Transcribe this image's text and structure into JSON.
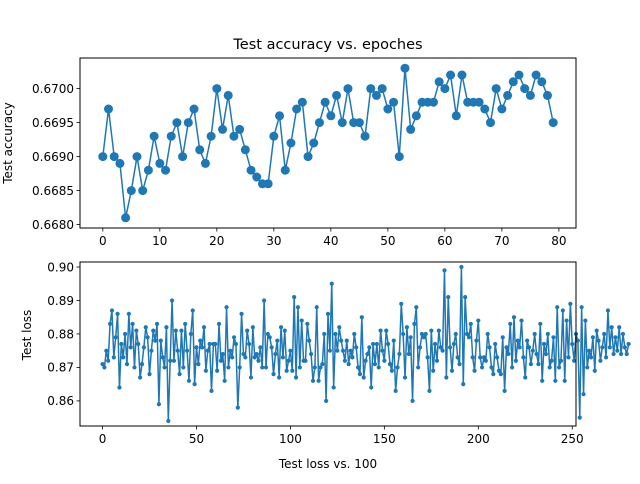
{
  "chart_data": [
    {
      "type": "line",
      "title": "Test accuracy vs. epoches",
      "xlabel": "",
      "ylabel": "Test accuracy",
      "xlim": [
        -4,
        83
      ],
      "ylim": [
        0.66795,
        0.67045
      ],
      "xticks": [
        0,
        10,
        20,
        30,
        40,
        50,
        60,
        70,
        80
      ],
      "yticks": [
        0.668,
        0.6685,
        0.669,
        0.6695,
        0.67
      ],
      "ytick_labels": [
        "0.6680",
        "0.6685",
        "0.6690",
        "0.6695",
        "0.6700"
      ],
      "marker": "circle-large",
      "color": "#1f77b4",
      "x": [
        0,
        1,
        2,
        3,
        4,
        5,
        6,
        7,
        8,
        9,
        10,
        11,
        12,
        13,
        14,
        15,
        16,
        17,
        18,
        19,
        20,
        21,
        22,
        23,
        24,
        25,
        26,
        27,
        28,
        29,
        30,
        31,
        32,
        33,
        34,
        35,
        36,
        37,
        38,
        39,
        40,
        41,
        42,
        43,
        44,
        45,
        46,
        47,
        48,
        49,
        50,
        51,
        52,
        53,
        54,
        55,
        56,
        57,
        58,
        59,
        60,
        61,
        62,
        63,
        64,
        65,
        66,
        67,
        68,
        69,
        70,
        71,
        72,
        73,
        74,
        75,
        76,
        77,
        78,
        79
      ],
      "y": [
        0.669,
        0.6697,
        0.669,
        0.6689,
        0.6681,
        0.6685,
        0.669,
        0.6685,
        0.6688,
        0.6693,
        0.6689,
        0.6688,
        0.6693,
        0.6695,
        0.669,
        0.6695,
        0.6697,
        0.6691,
        0.6689,
        0.6693,
        0.67,
        0.6694,
        0.6699,
        0.6693,
        0.6694,
        0.6691,
        0.6688,
        0.6687,
        0.6686,
        0.6686,
        0.6693,
        0.6696,
        0.6688,
        0.6692,
        0.6697,
        0.6698,
        0.669,
        0.6692,
        0.6695,
        0.6698,
        0.6696,
        0.6699,
        0.6695,
        0.67,
        0.6695,
        0.6695,
        0.6693,
        0.67,
        0.6699,
        0.67,
        0.6697,
        0.6698,
        0.669,
        0.6703,
        0.6694,
        0.6696,
        0.6698,
        0.6698,
        0.6698,
        0.6701,
        0.67,
        0.6702,
        0.6696,
        0.6702,
        0.6698,
        0.6698,
        0.6698,
        0.6697,
        0.6695,
        0.67,
        0.6697,
        0.6699,
        0.6701,
        0.6702,
        0.67,
        0.6699,
        0.6702,
        0.6701,
        0.6699,
        0.6695
      ]
    },
    {
      "type": "line",
      "title": "",
      "xlabel": "Test loss vs. 100",
      "ylabel": "Test loss",
      "xlim": [
        -12,
        252
      ],
      "ylim": [
        0.8525,
        0.9015
      ],
      "xticks": [
        0,
        50,
        100,
        150,
        200,
        250
      ],
      "yticks": [
        0.86,
        0.87,
        0.88,
        0.89,
        0.9
      ],
      "ytick_labels": [
        "0.86",
        "0.87",
        "0.88",
        "0.89",
        "0.90"
      ],
      "marker": "circle-small",
      "color": "#1f77b4",
      "y": [
        0.871,
        0.87,
        0.875,
        0.872,
        0.883,
        0.887,
        0.873,
        0.879,
        0.886,
        0.864,
        0.877,
        0.873,
        0.88,
        0.871,
        0.886,
        0.876,
        0.883,
        0.87,
        0.881,
        0.877,
        0.867,
        0.871,
        0.876,
        0.882,
        0.879,
        0.868,
        0.875,
        0.881,
        0.878,
        0.883,
        0.859,
        0.878,
        0.873,
        0.87,
        0.882,
        0.854,
        0.872,
        0.89,
        0.872,
        0.881,
        0.875,
        0.868,
        0.881,
        0.87,
        0.883,
        0.875,
        0.866,
        0.88,
        0.887,
        0.865,
        0.876,
        0.871,
        0.878,
        0.876,
        0.882,
        0.869,
        0.875,
        0.877,
        0.863,
        0.877,
        0.877,
        0.869,
        0.883,
        0.872,
        0.874,
        0.866,
        0.888,
        0.87,
        0.875,
        0.873,
        0.879,
        0.877,
        0.858,
        0.87,
        0.886,
        0.874,
        0.873,
        0.881,
        0.877,
        0.867,
        0.882,
        0.873,
        0.874,
        0.872,
        0.876,
        0.87,
        0.89,
        0.87,
        0.88,
        0.879,
        0.876,
        0.868,
        0.874,
        0.878,
        0.867,
        0.882,
        0.873,
        0.881,
        0.869,
        0.872,
        0.875,
        0.869,
        0.891,
        0.867,
        0.888,
        0.87,
        0.884,
        0.872,
        0.872,
        0.883,
        0.878,
        0.874,
        0.866,
        0.87,
        0.888,
        0.866,
        0.87,
        0.871,
        0.88,
        0.86,
        0.886,
        0.875,
        0.895,
        0.864,
        0.88,
        0.875,
        0.882,
        0.878,
        0.875,
        0.872,
        0.878,
        0.871,
        0.875,
        0.873,
        0.88,
        0.876,
        0.87,
        0.868,
        0.885,
        0.867,
        0.872,
        0.874,
        0.876,
        0.864,
        0.877,
        0.871,
        0.877,
        0.87,
        0.881,
        0.875,
        0.872,
        0.881,
        0.877,
        0.871,
        0.869,
        0.878,
        0.863,
        0.87,
        0.874,
        0.889,
        0.88,
        0.867,
        0.882,
        0.874,
        0.879,
        0.86,
        0.883,
        0.888,
        0.87,
        0.876,
        0.88,
        0.879,
        0.88,
        0.873,
        0.863,
        0.881,
        0.869,
        0.877,
        0.872,
        0.881,
        0.876,
        0.875,
        0.899,
        0.867,
        0.891,
        0.876,
        0.869,
        0.877,
        0.88,
        0.873,
        0.871,
        0.9,
        0.865,
        0.891,
        0.88,
        0.879,
        0.883,
        0.873,
        0.869,
        0.878,
        0.884,
        0.873,
        0.87,
        0.873,
        0.872,
        0.88,
        0.876,
        0.87,
        0.868,
        0.877,
        0.873,
        0.869,
        0.868,
        0.879,
        0.863,
        0.876,
        0.874,
        0.883,
        0.87,
        0.885,
        0.872,
        0.878,
        0.876,
        0.884,
        0.873,
        0.867,
        0.878,
        0.876,
        0.871,
        0.875,
        0.88,
        0.874,
        0.871,
        0.883,
        0.866,
        0.877,
        0.874,
        0.88,
        0.87,
        0.872,
        0.879,
        0.866,
        0.888,
        0.87,
        0.872,
        0.887,
        0.866,
        0.884,
        0.873,
        0.889,
        0.877,
        0.872,
        0.88,
        0.878,
        0.855,
        0.888,
        0.862,
        0.884,
        0.87,
        0.875,
        0.873,
        0.879,
        0.869,
        0.881,
        0.878,
        0.872,
        0.876,
        0.88,
        0.873,
        0.887,
        0.876,
        0.882,
        0.874,
        0.879,
        0.875,
        0.882,
        0.874,
        0.88,
        0.876,
        0.874,
        0.877
      ]
    }
  ]
}
